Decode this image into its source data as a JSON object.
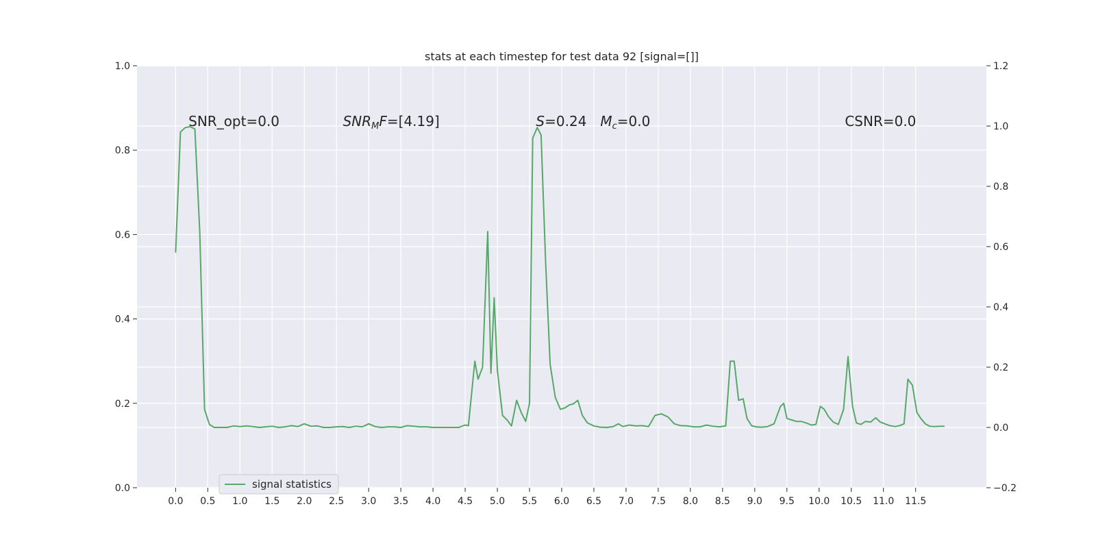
{
  "chart_data": {
    "type": "line",
    "title": "stats at each timestep for test data 92 [signal=[]]",
    "xlabel": "",
    "ylabel": "",
    "xlim": [
      -0.6,
      12.6
    ],
    "ylim": [
      0.0,
      1.0
    ],
    "y2lim": [
      -0.2,
      1.2
    ],
    "grid": true,
    "x_ticks": [
      0.0,
      0.5,
      1.0,
      1.5,
      2.0,
      2.5,
      3.0,
      3.5,
      4.0,
      4.5,
      5.0,
      5.5,
      6.0,
      6.5,
      7.0,
      7.5,
      8.0,
      8.5,
      9.0,
      9.5,
      10.0,
      10.5,
      11.0,
      11.5
    ],
    "x_tick_labels": [
      "0.0",
      "0.5",
      "1.0",
      "1.5",
      "2.0",
      "2.5",
      "3.0",
      "3.5",
      "4.0",
      "4.5",
      "5.0",
      "5.5",
      "6.0",
      "6.5",
      "7.0",
      "7.5",
      "8.0",
      "8.5",
      "9.0",
      "9.5",
      "10.0",
      "10.5",
      "11.0",
      "11.5"
    ],
    "y_ticks": [
      0.0,
      0.2,
      0.4,
      0.6,
      0.8,
      1.0
    ],
    "y_tick_labels": [
      "0.0",
      "0.2",
      "0.4",
      "0.6",
      "0.8",
      "1.0"
    ],
    "y2_ticks": [
      -0.2,
      0.0,
      0.2,
      0.4,
      0.6,
      0.8,
      1.0,
      1.2
    ],
    "y2_tick_labels": [
      "−0.2",
      "0.0",
      "0.2",
      "0.4",
      "0.6",
      "0.8",
      "1.0",
      "1.2"
    ],
    "legend": {
      "placement": "lower-left",
      "entries": [
        "signal statistics"
      ]
    },
    "colors": {
      "line": "#55a868",
      "background": "#eaeaf2",
      "grid": "#ffffff"
    },
    "annotations": [
      {
        "x": 0.2,
        "y2": 1.0,
        "text": "SNR_opt=0.0"
      },
      {
        "x": 2.6,
        "y2": 1.0,
        "base": "SNR",
        "sub": "M",
        "tail": "F",
        "value": "=[4.19]"
      },
      {
        "x": 5.6,
        "y2": 1.0,
        "base": "S",
        "value": "=0.24"
      },
      {
        "x": 6.6,
        "y2": 1.0,
        "base": "M",
        "sub": "c",
        "value": "=0.0"
      },
      {
        "x": 10.4,
        "y2": 1.0,
        "text": "CSNR=0.0"
      }
    ],
    "series": [
      {
        "name": "signal statistics",
        "axis": "right",
        "x": [
          0.0,
          0.075,
          0.15,
          0.225,
          0.3,
          0.375,
          0.45,
          0.525,
          0.6,
          0.7,
          0.8,
          0.9,
          1.0,
          1.1,
          1.2,
          1.3,
          1.4,
          1.5,
          1.6,
          1.7,
          1.8,
          1.9,
          2.0,
          2.1,
          2.2,
          2.3,
          2.4,
          2.5,
          2.6,
          2.7,
          2.8,
          2.9,
          3.0,
          3.1,
          3.2,
          3.3,
          3.4,
          3.5,
          3.6,
          3.7,
          3.8,
          3.9,
          4.0,
          4.1,
          4.2,
          4.3,
          4.4,
          4.5,
          4.55,
          4.65,
          4.7,
          4.77,
          4.85,
          4.9,
          4.95,
          5.0,
          5.08,
          5.15,
          5.22,
          5.3,
          5.37,
          5.44,
          5.5,
          5.55,
          5.62,
          5.68,
          5.75,
          5.82,
          5.9,
          5.98,
          6.05,
          6.12,
          6.18,
          6.25,
          6.32,
          6.4,
          6.5,
          6.6,
          6.7,
          6.8,
          6.88,
          6.95,
          7.05,
          7.15,
          7.25,
          7.35,
          7.45,
          7.55,
          7.65,
          7.75,
          7.85,
          7.95,
          8.05,
          8.15,
          8.25,
          8.35,
          8.45,
          8.55,
          8.62,
          8.68,
          8.75,
          8.82,
          8.88,
          8.95,
          9.02,
          9.1,
          9.2,
          9.3,
          9.4,
          9.45,
          9.5,
          9.57,
          9.65,
          9.72,
          9.8,
          9.88,
          9.95,
          10.02,
          10.08,
          10.15,
          10.22,
          10.3,
          10.38,
          10.45,
          10.52,
          10.58,
          10.65,
          10.72,
          10.8,
          10.88,
          10.95,
          11.02,
          11.1,
          11.18,
          11.25,
          11.32,
          11.38,
          11.45,
          11.52,
          11.58,
          11.65,
          11.72,
          11.8,
          11.88,
          11.95
        ],
        "values": [
          0.58,
          0.98,
          0.995,
          0.998,
          0.99,
          0.65,
          0.06,
          0.01,
          0.0,
          0.0,
          0.0,
          0.005,
          0.003,
          0.005,
          0.003,
          0.0,
          0.002,
          0.004,
          0.0,
          0.002,
          0.006,
          0.003,
          0.012,
          0.004,
          0.005,
          0.0,
          0.0,
          0.002,
          0.003,
          0.0,
          0.004,
          0.002,
          0.012,
          0.003,
          0.0,
          0.002,
          0.002,
          0.0,
          0.006,
          0.004,
          0.002,
          0.002,
          0.0,
          0.0,
          0.0,
          0.0,
          0.0,
          0.008,
          0.006,
          0.22,
          0.16,
          0.2,
          0.65,
          0.18,
          0.43,
          0.19,
          0.04,
          0.025,
          0.005,
          0.09,
          0.05,
          0.02,
          0.08,
          0.96,
          0.995,
          0.97,
          0.55,
          0.21,
          0.1,
          0.06,
          0.065,
          0.075,
          0.078,
          0.09,
          0.04,
          0.015,
          0.005,
          0.001,
          0.0,
          0.003,
          0.012,
          0.003,
          0.008,
          0.005,
          0.006,
          0.003,
          0.04,
          0.045,
          0.035,
          0.012,
          0.006,
          0.005,
          0.002,
          0.002,
          0.008,
          0.004,
          0.002,
          0.005,
          0.22,
          0.22,
          0.09,
          0.095,
          0.03,
          0.006,
          0.002,
          0.001,
          0.003,
          0.012,
          0.07,
          0.08,
          0.03,
          0.025,
          0.02,
          0.02,
          0.015,
          0.008,
          0.01,
          0.07,
          0.06,
          0.035,
          0.018,
          0.01,
          0.06,
          0.235,
          0.07,
          0.015,
          0.01,
          0.02,
          0.018,
          0.032,
          0.018,
          0.012,
          0.006,
          0.003,
          0.006,
          0.012,
          0.16,
          0.14,
          0.05,
          0.03,
          0.012,
          0.004,
          0.003,
          0.004,
          0.004
        ]
      }
    ]
  }
}
